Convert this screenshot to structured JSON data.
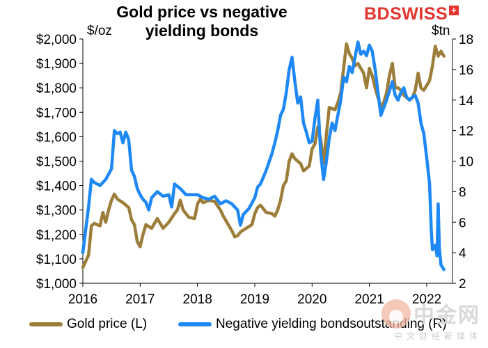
{
  "header": {
    "title": "Gold price vs negative yielding bonds",
    "title_line1": "Gold price vs negative",
    "title_line2": "yielding bonds",
    "left_unit": "$/oz",
    "right_unit": "$tn"
  },
  "logo": {
    "text_bd": "BD",
    "text_swiss": "SWISS",
    "cross": "+"
  },
  "watermark": {
    "main": "中金网",
    "sub": "中文财经新媒体"
  },
  "colors": {
    "gold": "#9c7d3a",
    "bonds": "#1e88f5",
    "axis": "#000000"
  },
  "chart_data": {
    "type": "line",
    "title": "Gold price vs negative yielding bonds",
    "x_ticks": [
      "2016",
      "2017",
      "2018",
      "2019",
      "2020",
      "2021",
      "2022"
    ],
    "xlim": [
      2016.0,
      2022.45
    ],
    "left_axis": {
      "unit": "$/oz",
      "ylim": [
        1000,
        2000
      ],
      "ticks": [
        1000,
        1100,
        1200,
        1300,
        1400,
        1500,
        1600,
        1700,
        1800,
        1900,
        2000
      ],
      "tick_labels": [
        "$1,000",
        "$1,100",
        "$1,200",
        "$1,300",
        "$1,400",
        "$1,500",
        "$1,600",
        "$1,700",
        "$1,800",
        "$1,900",
        "$2,000"
      ]
    },
    "right_axis": {
      "unit": "$tn",
      "ylim": [
        2,
        18
      ],
      "ticks": [
        2,
        4,
        6,
        8,
        10,
        12,
        14,
        16,
        18
      ],
      "tick_labels": [
        "2",
        "4",
        "6",
        "8",
        "10",
        "12",
        "14",
        "16",
        "18"
      ]
    },
    "series": [
      {
        "name": "Gold price (L)",
        "axis": "left",
        "color": "#9c7d3a",
        "points": [
          [
            2016.0,
            1065
          ],
          [
            2016.1,
            1115
          ],
          [
            2016.15,
            1235
          ],
          [
            2016.2,
            1245
          ],
          [
            2016.3,
            1235
          ],
          [
            2016.35,
            1290
          ],
          [
            2016.4,
            1250
          ],
          [
            2016.45,
            1300
          ],
          [
            2016.5,
            1340
          ],
          [
            2016.55,
            1365
          ],
          [
            2016.6,
            1345
          ],
          [
            2016.7,
            1330
          ],
          [
            2016.8,
            1310
          ],
          [
            2016.85,
            1260
          ],
          [
            2016.9,
            1240
          ],
          [
            2016.95,
            1170
          ],
          [
            2017.0,
            1150
          ],
          [
            2017.05,
            1200
          ],
          [
            2017.1,
            1240
          ],
          [
            2017.2,
            1225
          ],
          [
            2017.3,
            1265
          ],
          [
            2017.4,
            1225
          ],
          [
            2017.5,
            1250
          ],
          [
            2017.6,
            1285
          ],
          [
            2017.65,
            1300
          ],
          [
            2017.7,
            1340
          ],
          [
            2017.75,
            1300
          ],
          [
            2017.85,
            1270
          ],
          [
            2017.95,
            1265
          ],
          [
            2018.0,
            1325
          ],
          [
            2018.05,
            1345
          ],
          [
            2018.1,
            1330
          ],
          [
            2018.2,
            1340
          ],
          [
            2018.3,
            1335
          ],
          [
            2018.4,
            1300
          ],
          [
            2018.45,
            1275
          ],
          [
            2018.5,
            1255
          ],
          [
            2018.6,
            1215
          ],
          [
            2018.65,
            1190
          ],
          [
            2018.7,
            1195
          ],
          [
            2018.75,
            1210
          ],
          [
            2018.85,
            1225
          ],
          [
            2018.95,
            1240
          ],
          [
            2019.0,
            1285
          ],
          [
            2019.05,
            1310
          ],
          [
            2019.1,
            1320
          ],
          [
            2019.2,
            1290
          ],
          [
            2019.3,
            1285
          ],
          [
            2019.35,
            1275
          ],
          [
            2019.4,
            1300
          ],
          [
            2019.45,
            1340
          ],
          [
            2019.5,
            1400
          ],
          [
            2019.55,
            1420
          ],
          [
            2019.6,
            1500
          ],
          [
            2019.65,
            1530
          ],
          [
            2019.7,
            1510
          ],
          [
            2019.8,
            1490
          ],
          [
            2019.85,
            1460
          ],
          [
            2019.95,
            1480
          ],
          [
            2020.0,
            1550
          ],
          [
            2020.05,
            1570
          ],
          [
            2020.1,
            1640
          ],
          [
            2020.15,
            1590
          ],
          [
            2020.2,
            1490
          ],
          [
            2020.25,
            1610
          ],
          [
            2020.3,
            1720
          ],
          [
            2020.4,
            1710
          ],
          [
            2020.45,
            1740
          ],
          [
            2020.5,
            1780
          ],
          [
            2020.55,
            1880
          ],
          [
            2020.6,
            1980
          ],
          [
            2020.65,
            1940
          ],
          [
            2020.7,
            1920
          ],
          [
            2020.75,
            1890
          ],
          [
            2020.8,
            1900
          ],
          [
            2020.85,
            1880
          ],
          [
            2020.9,
            1860
          ],
          [
            2020.95,
            1800
          ],
          [
            2021.0,
            1880
          ],
          [
            2021.05,
            1850
          ],
          [
            2021.1,
            1800
          ],
          [
            2021.15,
            1760
          ],
          [
            2021.2,
            1720
          ],
          [
            2021.25,
            1740
          ],
          [
            2021.3,
            1780
          ],
          [
            2021.35,
            1850
          ],
          [
            2021.4,
            1900
          ],
          [
            2021.45,
            1800
          ],
          [
            2021.5,
            1800
          ],
          [
            2021.55,
            1790
          ],
          [
            2021.6,
            1770
          ],
          [
            2021.65,
            1760
          ],
          [
            2021.7,
            1750
          ],
          [
            2021.75,
            1760
          ],
          [
            2021.8,
            1790
          ],
          [
            2021.85,
            1860
          ],
          [
            2021.9,
            1800
          ],
          [
            2021.95,
            1790
          ],
          [
            2022.0,
            1810
          ],
          [
            2022.05,
            1830
          ],
          [
            2022.1,
            1890
          ],
          [
            2022.15,
            1970
          ],
          [
            2022.2,
            1930
          ],
          [
            2022.25,
            1950
          ],
          [
            2022.3,
            1930
          ]
        ]
      },
      {
        "name": "Negative yielding bondsoutstanding (R)",
        "axis": "right",
        "color": "#1e88f5",
        "points": [
          [
            2016.0,
            4.0
          ],
          [
            2016.05,
            5.5
          ],
          [
            2016.1,
            7.0
          ],
          [
            2016.15,
            8.8
          ],
          [
            2016.2,
            8.6
          ],
          [
            2016.3,
            8.4
          ],
          [
            2016.4,
            8.8
          ],
          [
            2016.5,
            9.5
          ],
          [
            2016.55,
            12.0
          ],
          [
            2016.6,
            11.8
          ],
          [
            2016.65,
            11.9
          ],
          [
            2016.7,
            11.2
          ],
          [
            2016.75,
            11.9
          ],
          [
            2016.8,
            11.4
          ],
          [
            2016.85,
            9.4
          ],
          [
            2016.9,
            9.0
          ],
          [
            2016.95,
            8.2
          ],
          [
            2017.0,
            7.8
          ],
          [
            2017.05,
            7.5
          ],
          [
            2017.1,
            7.3
          ],
          [
            2017.15,
            6.8
          ],
          [
            2017.2,
            7.6
          ],
          [
            2017.3,
            8.0
          ],
          [
            2017.4,
            7.7
          ],
          [
            2017.5,
            7.8
          ],
          [
            2017.55,
            7.0
          ],
          [
            2017.6,
            8.5
          ],
          [
            2017.7,
            8.2
          ],
          [
            2017.8,
            7.8
          ],
          [
            2017.9,
            7.8
          ],
          [
            2018.0,
            7.8
          ],
          [
            2018.1,
            7.6
          ],
          [
            2018.2,
            7.5
          ],
          [
            2018.3,
            7.7
          ],
          [
            2018.4,
            7.2
          ],
          [
            2018.5,
            7.4
          ],
          [
            2018.6,
            7.2
          ],
          [
            2018.7,
            6.8
          ],
          [
            2018.75,
            5.8
          ],
          [
            2018.8,
            6.5
          ],
          [
            2018.9,
            6.9
          ],
          [
            2019.0,
            7.6
          ],
          [
            2019.05,
            8.3
          ],
          [
            2019.1,
            8.5
          ],
          [
            2019.2,
            9.4
          ],
          [
            2019.3,
            10.5
          ],
          [
            2019.35,
            11.2
          ],
          [
            2019.4,
            12.0
          ],
          [
            2019.45,
            13.0
          ],
          [
            2019.5,
            13.4
          ],
          [
            2019.55,
            14.5
          ],
          [
            2019.6,
            16.0
          ],
          [
            2019.65,
            16.8
          ],
          [
            2019.7,
            15.2
          ],
          [
            2019.75,
            13.8
          ],
          [
            2019.8,
            14.2
          ],
          [
            2019.85,
            12.5
          ],
          [
            2019.9,
            11.9
          ],
          [
            2019.95,
            11.2
          ],
          [
            2020.0,
            11.3
          ],
          [
            2020.05,
            12.8
          ],
          [
            2020.1,
            14.0
          ],
          [
            2020.15,
            10.5
          ],
          [
            2020.2,
            8.8
          ],
          [
            2020.25,
            10.0
          ],
          [
            2020.3,
            11.5
          ],
          [
            2020.35,
            12.5
          ],
          [
            2020.4,
            12.0
          ],
          [
            2020.45,
            13.0
          ],
          [
            2020.5,
            14.0
          ],
          [
            2020.55,
            15.5
          ],
          [
            2020.6,
            15.2
          ],
          [
            2020.65,
            16.2
          ],
          [
            2020.7,
            15.8
          ],
          [
            2020.75,
            16.8
          ],
          [
            2020.8,
            17.8
          ],
          [
            2020.85,
            17.0
          ],
          [
            2020.9,
            17.2
          ],
          [
            2020.95,
            16.9
          ],
          [
            2021.0,
            17.6
          ],
          [
            2021.05,
            17.2
          ],
          [
            2021.1,
            16.0
          ],
          [
            2021.15,
            14.5
          ],
          [
            2021.2,
            13.0
          ],
          [
            2021.25,
            13.5
          ],
          [
            2021.3,
            14.0
          ],
          [
            2021.35,
            14.6
          ],
          [
            2021.4,
            15.2
          ],
          [
            2021.45,
            14.3
          ],
          [
            2021.5,
            14.0
          ],
          [
            2021.55,
            14.5
          ],
          [
            2021.6,
            14.8
          ],
          [
            2021.65,
            14.2
          ],
          [
            2021.7,
            14.0
          ],
          [
            2021.75,
            14.2
          ],
          [
            2021.8,
            14.3
          ],
          [
            2021.85,
            13.8
          ],
          [
            2021.9,
            12.5
          ],
          [
            2021.95,
            11.8
          ],
          [
            2022.0,
            10.2
          ],
          [
            2022.05,
            8.5
          ],
          [
            2022.08,
            5.5
          ],
          [
            2022.1,
            4.2
          ],
          [
            2022.15,
            4.5
          ],
          [
            2022.18,
            3.8
          ],
          [
            2022.2,
            7.2
          ],
          [
            2022.22,
            4.3
          ],
          [
            2022.25,
            3.2
          ],
          [
            2022.3,
            2.9
          ]
        ]
      }
    ],
    "legend": [
      "Gold price (L)",
      "Negative yielding bondsoutstanding (R)"
    ],
    "legend_position": "bottom",
    "grid": false
  }
}
